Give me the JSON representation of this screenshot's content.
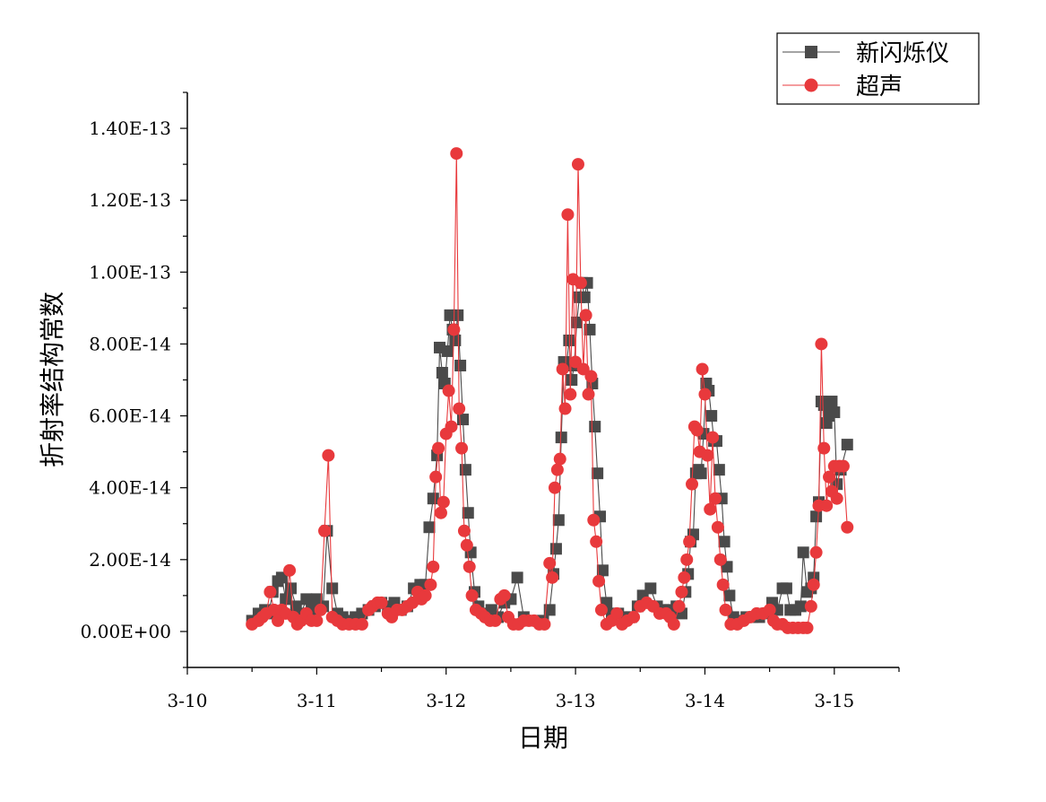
{
  "chart_data": {
    "type": "line",
    "title": "",
    "xlabel": "日期",
    "ylabel": "折射率结构常数",
    "xlim": [
      "3-10",
      "3-15.5"
    ],
    "ylim": [
      -1e-14,
      1.5e-13
    ],
    "x_tick_labels": [
      "3-10",
      "3-11",
      "3-12",
      "3-13",
      "3-14",
      "3-15"
    ],
    "y_tick_labels": [
      "0.00E+00",
      "2.00E-14",
      "4.00E-14",
      "6.00E-14",
      "8.00E-14",
      "1.00E-13",
      "1.20E-13",
      "1.40E-13"
    ],
    "y_tick_values": [
      0,
      2e-14,
      4e-14,
      6e-14,
      8e-14,
      1e-13,
      1.2e-13,
      1.4e-13
    ],
    "x_unit": "day of March",
    "grid": false,
    "legend_position": "top-right",
    "series": [
      {
        "name": "新闪烁仪",
        "color": "#4a4a4a",
        "marker": "square",
        "points": [
          [
            10.5,
            3e-15
          ],
          [
            10.55,
            5e-15
          ],
          [
            10.6,
            6e-15
          ],
          [
            10.63,
            5e-15
          ],
          [
            10.66,
            1.1e-14
          ],
          [
            10.7,
            1.4e-14
          ],
          [
            10.73,
            1.5e-14
          ],
          [
            10.76,
            9e-15
          ],
          [
            10.8,
            1.2e-14
          ],
          [
            10.84,
            7e-15
          ],
          [
            10.88,
            5e-15
          ],
          [
            10.92,
            9e-15
          ],
          [
            10.96,
            6e-15
          ],
          [
            11.0,
            9e-15
          ],
          [
            11.05,
            7e-15
          ],
          [
            11.08,
            2.8e-14
          ],
          [
            11.12,
            1.2e-14
          ],
          [
            11.16,
            5e-15
          ],
          [
            11.2,
            4e-15
          ],
          [
            11.25,
            3e-15
          ],
          [
            11.3,
            4e-15
          ],
          [
            11.35,
            5e-15
          ],
          [
            11.4,
            6e-15
          ],
          [
            11.45,
            7e-15
          ],
          [
            11.5,
            8e-15
          ],
          [
            11.55,
            7e-15
          ],
          [
            11.6,
            8e-15
          ],
          [
            11.65,
            6e-15
          ],
          [
            11.7,
            7e-15
          ],
          [
            11.75,
            1.2e-14
          ],
          [
            11.8,
            1.3e-14
          ],
          [
            11.84,
            1.3e-14
          ],
          [
            11.87,
            2.9e-14
          ],
          [
            11.9,
            3.7e-14
          ],
          [
            11.93,
            4.9e-14
          ],
          [
            11.95,
            7.9e-14
          ],
          [
            11.97,
            7.2e-14
          ],
          [
            11.99,
            6.9e-14
          ],
          [
            12.01,
            7.8e-14
          ],
          [
            12.03,
            8.8e-14
          ],
          [
            12.05,
            8.4e-14
          ],
          [
            12.07,
            8.1e-14
          ],
          [
            12.09,
            8.8e-14
          ],
          [
            12.11,
            7.4e-14
          ],
          [
            12.13,
            5.9e-14
          ],
          [
            12.15,
            4.5e-14
          ],
          [
            12.17,
            3.3e-14
          ],
          [
            12.19,
            2.2e-14
          ],
          [
            12.22,
            1.1e-14
          ],
          [
            12.25,
            7e-15
          ],
          [
            12.3,
            5e-15
          ],
          [
            12.35,
            6e-15
          ],
          [
            12.4,
            4e-15
          ],
          [
            12.45,
            8e-15
          ],
          [
            12.5,
            9e-15
          ],
          [
            12.55,
            1.5e-14
          ],
          [
            12.6,
            4e-15
          ],
          [
            12.65,
            3e-15
          ],
          [
            12.7,
            3e-15
          ],
          [
            12.75,
            3e-15
          ],
          [
            12.8,
            6e-15
          ],
          [
            12.83,
            1.6e-14
          ],
          [
            12.85,
            2.3e-14
          ],
          [
            12.87,
            3.1e-14
          ],
          [
            12.89,
            5.4e-14
          ],
          [
            12.91,
            7.5e-14
          ],
          [
            12.93,
            7.4e-14
          ],
          [
            12.95,
            8.1e-14
          ],
          [
            12.97,
            7e-14
          ],
          [
            12.99,
            7.4e-14
          ],
          [
            13.01,
            8.6e-14
          ],
          [
            13.03,
            9.3e-14
          ],
          [
            13.05,
            9.7e-14
          ],
          [
            13.07,
            9.3e-14
          ],
          [
            13.09,
            9.7e-14
          ],
          [
            13.11,
            8.4e-14
          ],
          [
            13.13,
            6.9e-14
          ],
          [
            13.15,
            5.7e-14
          ],
          [
            13.17,
            4.4e-14
          ],
          [
            13.19,
            3.2e-14
          ],
          [
            13.21,
            1.7e-14
          ],
          [
            13.24,
            8e-15
          ],
          [
            13.28,
            5e-15
          ],
          [
            13.33,
            5e-15
          ],
          [
            13.38,
            4e-15
          ],
          [
            13.43,
            4e-15
          ],
          [
            13.48,
            7e-15
          ],
          [
            13.52,
            1e-14
          ],
          [
            13.58,
            1.2e-14
          ],
          [
            13.63,
            7e-15
          ],
          [
            13.68,
            6e-15
          ],
          [
            13.73,
            6e-15
          ],
          [
            13.78,
            7e-15
          ],
          [
            13.82,
            5e-15
          ],
          [
            13.85,
            1.1e-14
          ],
          [
            13.87,
            1.6e-14
          ],
          [
            13.89,
            2.5e-14
          ],
          [
            13.91,
            2.7e-14
          ],
          [
            13.93,
            4.4e-14
          ],
          [
            13.95,
            4.5e-14
          ],
          [
            13.97,
            4.4e-14
          ],
          [
            13.99,
            5.5e-14
          ],
          [
            14.01,
            6.9e-14
          ],
          [
            14.03,
            6.7e-14
          ],
          [
            14.05,
            6e-14
          ],
          [
            14.07,
            5.3e-14
          ],
          [
            14.09,
            5.3e-14
          ],
          [
            14.11,
            4.5e-14
          ],
          [
            14.13,
            3.7e-14
          ],
          [
            14.15,
            2.5e-14
          ],
          [
            14.17,
            1.8e-14
          ],
          [
            14.19,
            1e-14
          ],
          [
            14.22,
            4e-15
          ],
          [
            14.27,
            3e-15
          ],
          [
            14.32,
            4e-15
          ],
          [
            14.37,
            4e-15
          ],
          [
            14.42,
            4e-15
          ],
          [
            14.47,
            5e-15
          ],
          [
            14.52,
            8e-15
          ],
          [
            14.56,
            6e-15
          ],
          [
            14.6,
            1.2e-14
          ],
          [
            14.63,
            1.2e-14
          ],
          [
            14.66,
            6e-15
          ],
          [
            14.7,
            6e-15
          ],
          [
            14.74,
            7e-15
          ],
          [
            14.76,
            2.2e-14
          ],
          [
            14.79,
            1.1e-14
          ],
          [
            14.82,
            1.2e-14
          ],
          [
            14.84,
            1.5e-14
          ],
          [
            14.86,
            3.2e-14
          ],
          [
            14.88,
            3.6e-14
          ],
          [
            14.9,
            6.4e-14
          ],
          [
            14.92,
            6.3e-14
          ],
          [
            14.94,
            5.8e-14
          ],
          [
            14.96,
            6e-14
          ],
          [
            14.98,
            6.4e-14
          ],
          [
            15.0,
            6.1e-14
          ],
          [
            15.02,
            4.1e-14
          ],
          [
            15.05,
            4.5e-14
          ],
          [
            15.1,
            5.2e-14
          ]
        ]
      },
      {
        "name": "超声",
        "color": "#e8393c",
        "marker": "circle",
        "points": [
          [
            10.5,
            2e-15
          ],
          [
            10.55,
            3e-15
          ],
          [
            10.58,
            4e-15
          ],
          [
            10.61,
            5e-15
          ],
          [
            10.64,
            1.1e-14
          ],
          [
            10.67,
            6e-15
          ],
          [
            10.7,
            3e-15
          ],
          [
            10.73,
            6e-15
          ],
          [
            10.76,
            5e-15
          ],
          [
            10.79,
            1.7e-14
          ],
          [
            10.82,
            4e-15
          ],
          [
            10.85,
            2e-15
          ],
          [
            10.88,
            3e-15
          ],
          [
            10.92,
            5e-15
          ],
          [
            10.96,
            3e-15
          ],
          [
            11.0,
            3e-15
          ],
          [
            11.03,
            6e-15
          ],
          [
            11.06,
            2.8e-14
          ],
          [
            11.09,
            4.9e-14
          ],
          [
            11.12,
            4e-15
          ],
          [
            11.16,
            3e-15
          ],
          [
            11.2,
            2e-15
          ],
          [
            11.25,
            2e-15
          ],
          [
            11.3,
            2e-15
          ],
          [
            11.35,
            2e-15
          ],
          [
            11.4,
            6e-15
          ],
          [
            11.43,
            7e-15
          ],
          [
            11.47,
            8e-15
          ],
          [
            11.5,
            8e-15
          ],
          [
            11.55,
            5e-15
          ],
          [
            11.58,
            4e-15
          ],
          [
            11.62,
            6e-15
          ],
          [
            11.66,
            6e-15
          ],
          [
            11.7,
            7e-15
          ],
          [
            11.74,
            8e-15
          ],
          [
            11.78,
            1.1e-14
          ],
          [
            11.81,
            9e-15
          ],
          [
            11.84,
            1e-14
          ],
          [
            11.88,
            1.3e-14
          ],
          [
            11.9,
            1.8e-14
          ],
          [
            11.92,
            4.3e-14
          ],
          [
            11.94,
            5.1e-14
          ],
          [
            11.96,
            3.3e-14
          ],
          [
            11.98,
            3.6e-14
          ],
          [
            12.0,
            5.5e-14
          ],
          [
            12.02,
            6.7e-14
          ],
          [
            12.04,
            5.7e-14
          ],
          [
            12.06,
            8.4e-14
          ],
          [
            12.08,
            1.33e-13
          ],
          [
            12.1,
            6.2e-14
          ],
          [
            12.12,
            5.1e-14
          ],
          [
            12.14,
            2.8e-14
          ],
          [
            12.16,
            2.4e-14
          ],
          [
            12.18,
            1.8e-14
          ],
          [
            12.2,
            1e-14
          ],
          [
            12.23,
            6e-15
          ],
          [
            12.27,
            5e-15
          ],
          [
            12.3,
            4e-15
          ],
          [
            12.34,
            3e-15
          ],
          [
            12.38,
            3e-15
          ],
          [
            12.42,
            9e-15
          ],
          [
            12.45,
            1e-14
          ],
          [
            12.48,
            4e-15
          ],
          [
            12.52,
            2e-15
          ],
          [
            12.56,
            2e-15
          ],
          [
            12.6,
            3e-15
          ],
          [
            12.64,
            3e-15
          ],
          [
            12.68,
            3e-15
          ],
          [
            12.72,
            2e-15
          ],
          [
            12.76,
            2e-15
          ],
          [
            12.8,
            1.9e-14
          ],
          [
            12.82,
            1.5e-14
          ],
          [
            12.84,
            4e-14
          ],
          [
            12.86,
            4.5e-14
          ],
          [
            12.88,
            4.8e-14
          ],
          [
            12.9,
            7.3e-14
          ],
          [
            12.92,
            6.2e-14
          ],
          [
            12.94,
            1.16e-13
          ],
          [
            12.96,
            6.6e-14
          ],
          [
            12.98,
            9.8e-14
          ],
          [
            13.0,
            7.5e-14
          ],
          [
            13.02,
            1.3e-13
          ],
          [
            13.04,
            9.7e-14
          ],
          [
            13.06,
            7.3e-14
          ],
          [
            13.08,
            8.8e-14
          ],
          [
            13.1,
            6.6e-14
          ],
          [
            13.12,
            7.1e-14
          ],
          [
            13.14,
            3.1e-14
          ],
          [
            13.16,
            2.5e-14
          ],
          [
            13.18,
            1.4e-14
          ],
          [
            13.2,
            6e-15
          ],
          [
            13.24,
            2e-15
          ],
          [
            13.28,
            3e-15
          ],
          [
            13.32,
            5e-15
          ],
          [
            13.36,
            2e-15
          ],
          [
            13.4,
            3e-15
          ],
          [
            13.45,
            4e-15
          ],
          [
            13.5,
            7e-15
          ],
          [
            13.55,
            8e-15
          ],
          [
            13.6,
            7e-15
          ],
          [
            13.65,
            5e-15
          ],
          [
            13.7,
            5e-15
          ],
          [
            13.73,
            4e-15
          ],
          [
            13.76,
            2e-15
          ],
          [
            13.8,
            7e-15
          ],
          [
            13.82,
            1.1e-14
          ],
          [
            13.84,
            1.5e-14
          ],
          [
            13.86,
            2e-14
          ],
          [
            13.88,
            2.5e-14
          ],
          [
            13.9,
            4.1e-14
          ],
          [
            13.92,
            5.7e-14
          ],
          [
            13.94,
            5.6e-14
          ],
          [
            13.96,
            5e-14
          ],
          [
            13.98,
            7.3e-14
          ],
          [
            14.0,
            6.6e-14
          ],
          [
            14.02,
            4.9e-14
          ],
          [
            14.04,
            3.4e-14
          ],
          [
            14.06,
            5.4e-14
          ],
          [
            14.08,
            3.7e-14
          ],
          [
            14.1,
            2.9e-14
          ],
          [
            14.12,
            2e-14
          ],
          [
            14.14,
            1.3e-14
          ],
          [
            14.16,
            6e-15
          ],
          [
            14.2,
            2e-15
          ],
          [
            14.25,
            2e-15
          ],
          [
            14.3,
            3e-15
          ],
          [
            14.35,
            4e-15
          ],
          [
            14.4,
            5e-15
          ],
          [
            14.45,
            5e-15
          ],
          [
            14.5,
            6e-15
          ],
          [
            14.53,
            3e-15
          ],
          [
            14.56,
            2e-15
          ],
          [
            14.6,
            2e-15
          ],
          [
            14.64,
            1e-15
          ],
          [
            14.68,
            1e-15
          ],
          [
            14.72,
            1e-15
          ],
          [
            14.76,
            1e-15
          ],
          [
            14.79,
            1e-15
          ],
          [
            14.82,
            7e-15
          ],
          [
            14.84,
            1.3e-14
          ],
          [
            14.86,
            2.2e-14
          ],
          [
            14.88,
            3.5e-14
          ],
          [
            14.9,
            8e-14
          ],
          [
            14.92,
            5.1e-14
          ],
          [
            14.94,
            3.5e-14
          ],
          [
            14.96,
            4.3e-14
          ],
          [
            14.98,
            3.9e-14
          ],
          [
            15.0,
            4.6e-14
          ],
          [
            15.02,
            3.7e-14
          ],
          [
            15.04,
            4.6e-14
          ],
          [
            15.07,
            4.6e-14
          ],
          [
            15.1,
            2.9e-14
          ]
        ]
      }
    ]
  }
}
